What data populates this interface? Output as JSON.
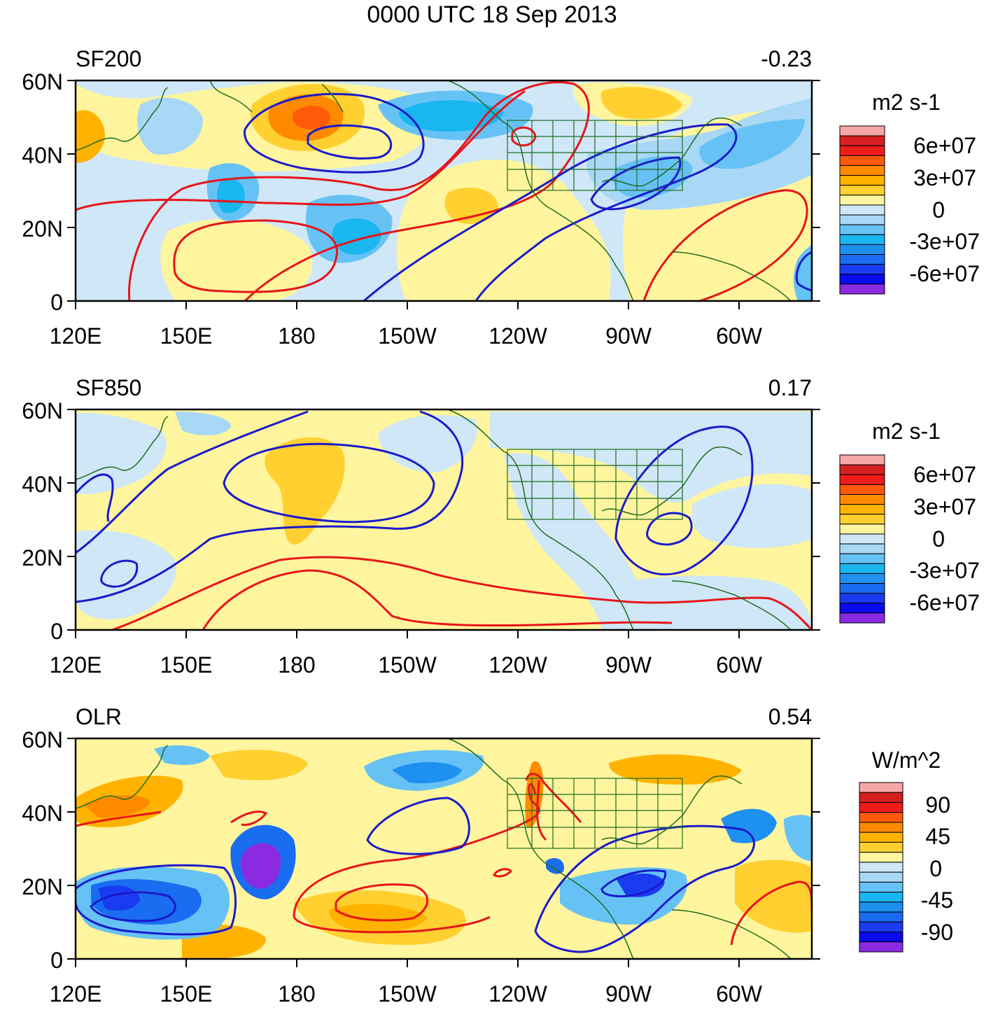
{
  "figure": {
    "title": "0000 UTC 18 Sep 2013"
  },
  "axes": {
    "lat_labels": [
      "60N",
      "40N",
      "20N",
      "0"
    ],
    "lon_labels": [
      "120E",
      "150E",
      "180",
      "150W",
      "120W",
      "90W",
      "60W"
    ]
  },
  "palette": {
    "levels": [
      "#f7a6a6",
      "#d62020",
      "#ef1c1c",
      "#ff5a0a",
      "#ff8a00",
      "#ffb300",
      "#ffd030",
      "#fff59e",
      "#cfe7f7",
      "#a8d8f6",
      "#66c2f5",
      "#1ab6f0",
      "#1e90f0",
      "#1a6cf0",
      "#1a3cf0",
      "#0a0aef",
      "#8a2be2"
    ],
    "positive_contour": "#e8141a",
    "negative_contour": "#1a1acc",
    "coast": "#1f6b1f"
  },
  "panels": [
    {
      "id": "sf200",
      "label": "SF200",
      "correlation": "-0.23",
      "colorbar": {
        "title": "m2 s-1",
        "tick_labels": [
          "6e+07",
          "3e+07",
          "0",
          "-3e+07",
          "-6e+07"
        ]
      }
    },
    {
      "id": "sf850",
      "label": "SF850",
      "correlation": "0.17",
      "colorbar": {
        "title": "m2 s-1",
        "tick_labels": [
          "6e+07",
          "3e+07",
          "0",
          "-3e+07",
          "-6e+07"
        ]
      }
    },
    {
      "id": "olr",
      "label": "OLR",
      "correlation": "0.54",
      "colorbar": {
        "title": "W/m^2",
        "tick_labels": [
          "90",
          "45",
          "0",
          "-45",
          "-90"
        ]
      }
    }
  ]
}
